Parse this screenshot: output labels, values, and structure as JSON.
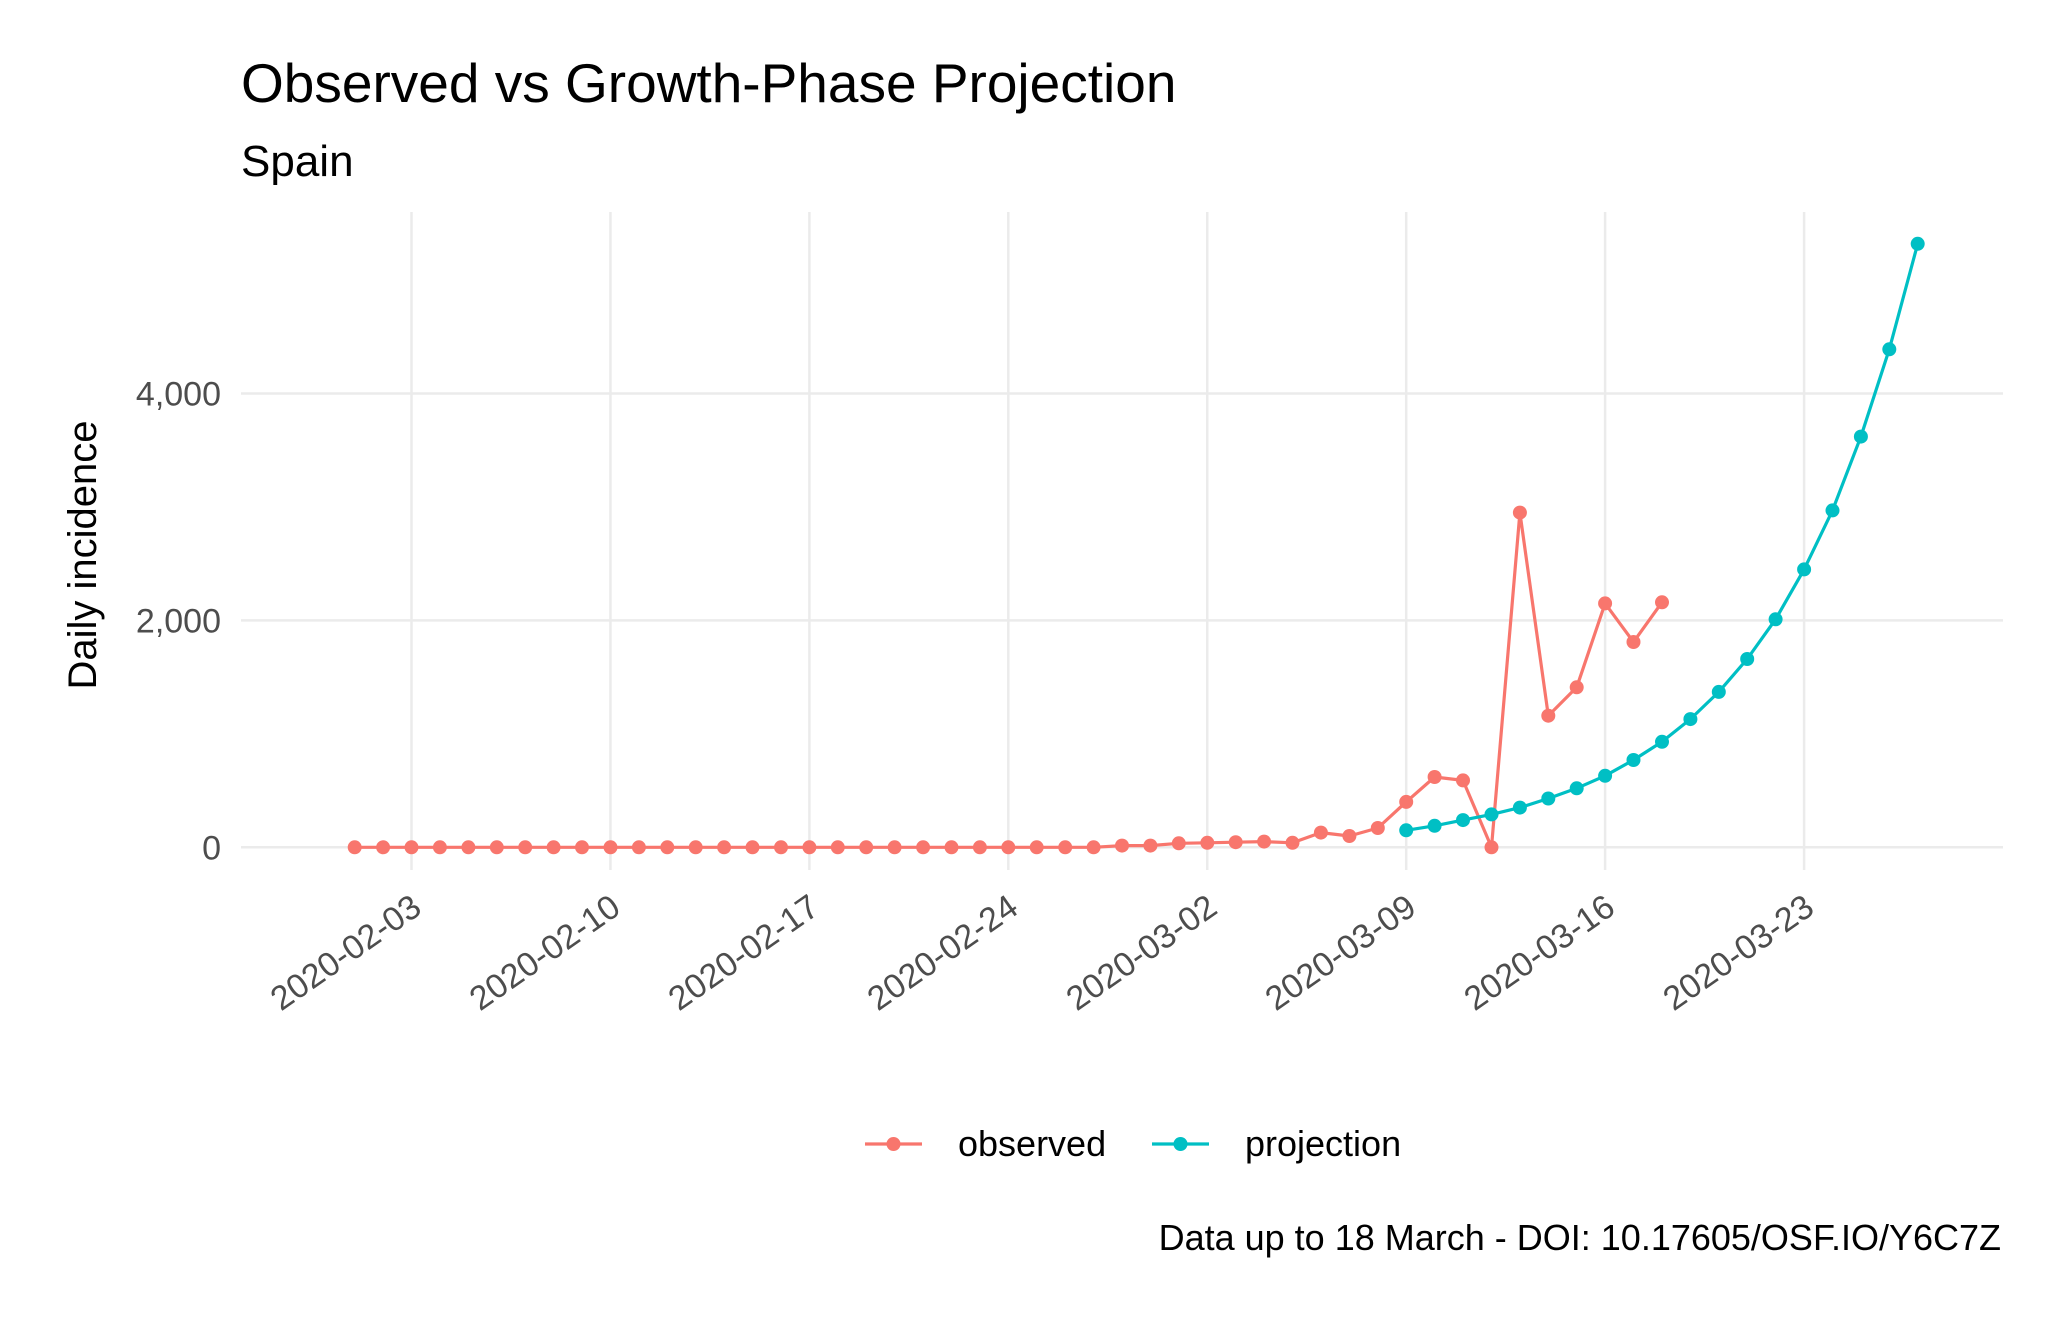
{
  "chart_data": {
    "type": "line",
    "title": "Observed vs Growth-Phase Projection",
    "subtitle": "Spain",
    "xlabel": "",
    "ylabel": "Daily incidence",
    "caption": "Data up to 18 March - DOI: 10.17605/OSF.IO/Y6C7Z",
    "x_axis": {
      "type": "date",
      "tick_labels": [
        "2020-02-03",
        "2020-02-10",
        "2020-02-17",
        "2020-02-24",
        "2020-03-02",
        "2020-03-09",
        "2020-03-16",
        "2020-03-23"
      ],
      "range": [
        "2020-01-28",
        "2020-03-30"
      ]
    },
    "y_axis": {
      "tick_values": [
        0,
        2000,
        4000
      ],
      "tick_labels": [
        "0",
        "2,000",
        "4,000"
      ],
      "range": [
        -200,
        5600
      ]
    },
    "grid": true,
    "legend_position": "bottom",
    "series": [
      {
        "name": "observed",
        "color": "#F8766D",
        "points": [
          [
            "2020-02-01",
            0
          ],
          [
            "2020-02-02",
            0
          ],
          [
            "2020-02-03",
            0
          ],
          [
            "2020-02-04",
            0
          ],
          [
            "2020-02-05",
            0
          ],
          [
            "2020-02-06",
            0
          ],
          [
            "2020-02-07",
            0
          ],
          [
            "2020-02-08",
            0
          ],
          [
            "2020-02-09",
            0
          ],
          [
            "2020-02-10",
            0
          ],
          [
            "2020-02-11",
            0
          ],
          [
            "2020-02-12",
            0
          ],
          [
            "2020-02-13",
            0
          ],
          [
            "2020-02-14",
            0
          ],
          [
            "2020-02-15",
            0
          ],
          [
            "2020-02-16",
            0
          ],
          [
            "2020-02-17",
            0
          ],
          [
            "2020-02-18",
            0
          ],
          [
            "2020-02-19",
            0
          ],
          [
            "2020-02-20",
            0
          ],
          [
            "2020-02-21",
            0
          ],
          [
            "2020-02-22",
            0
          ],
          [
            "2020-02-23",
            0
          ],
          [
            "2020-02-24",
            0
          ],
          [
            "2020-02-25",
            0
          ],
          [
            "2020-02-26",
            0
          ],
          [
            "2020-02-27",
            0
          ],
          [
            "2020-02-28",
            15
          ],
          [
            "2020-02-29",
            15
          ],
          [
            "2020-03-01",
            35
          ],
          [
            "2020-03-02",
            40
          ],
          [
            "2020-03-03",
            45
          ],
          [
            "2020-03-04",
            50
          ],
          [
            "2020-03-05",
            40
          ],
          [
            "2020-03-06",
            130
          ],
          [
            "2020-03-07",
            100
          ],
          [
            "2020-03-08",
            170
          ],
          [
            "2020-03-09",
            400
          ],
          [
            "2020-03-10",
            620
          ],
          [
            "2020-03-11",
            590
          ],
          [
            "2020-03-12",
            0
          ],
          [
            "2020-03-13",
            2950
          ],
          [
            "2020-03-14",
            1160
          ],
          [
            "2020-03-15",
            1410
          ],
          [
            "2020-03-16",
            2150
          ],
          [
            "2020-03-17",
            1810
          ],
          [
            "2020-03-18",
            2160
          ]
        ]
      },
      {
        "name": "projection",
        "color": "#00BFC4",
        "points": [
          [
            "2020-03-09",
            150
          ],
          [
            "2020-03-10",
            190
          ],
          [
            "2020-03-11",
            240
          ],
          [
            "2020-03-12",
            290
          ],
          [
            "2020-03-13",
            350
          ],
          [
            "2020-03-14",
            430
          ],
          [
            "2020-03-15",
            520
          ],
          [
            "2020-03-16",
            630
          ],
          [
            "2020-03-17",
            770
          ],
          [
            "2020-03-18",
            930
          ],
          [
            "2020-03-19",
            1130
          ],
          [
            "2020-03-20",
            1370
          ],
          [
            "2020-03-21",
            1660
          ],
          [
            "2020-03-22",
            2010
          ],
          [
            "2020-03-23",
            2450
          ],
          [
            "2020-03-24",
            2970
          ],
          [
            "2020-03-25",
            3620
          ],
          [
            "2020-03-26",
            4390
          ],
          [
            "2020-03-27",
            5320
          ]
        ]
      }
    ]
  }
}
